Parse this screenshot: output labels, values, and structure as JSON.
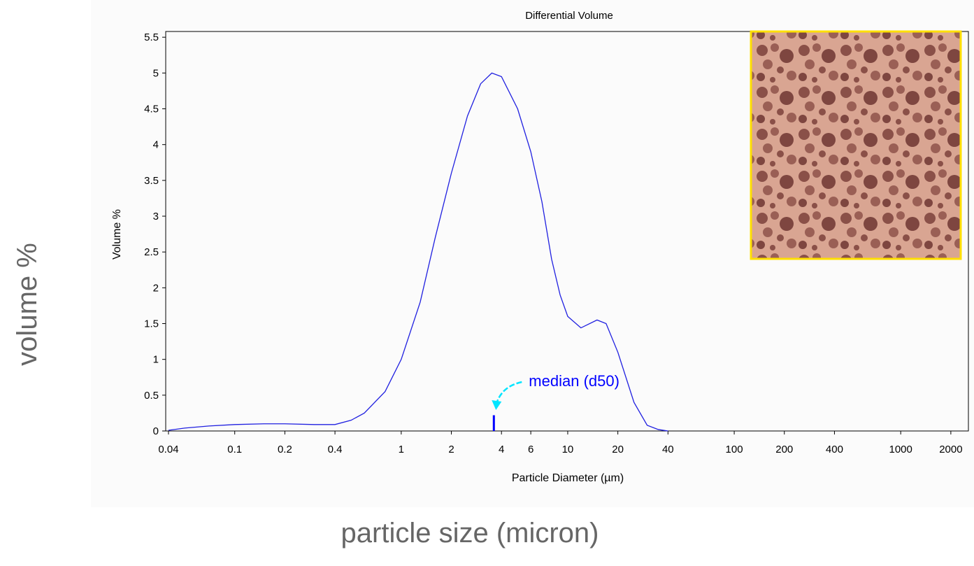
{
  "chart_data": {
    "type": "line",
    "title": "Differential Volume",
    "xlabel": "Particle Diameter (µm)",
    "ylabel": "Volume %",
    "outer_ylabel": "volume %",
    "outer_xlabel": "particle size (micron)",
    "xscale": "log",
    "xlim": [
      0.0385,
      2550
    ],
    "ylim": [
      0,
      5.58
    ],
    "xticks": [
      0.04,
      0.1,
      0.2,
      0.4,
      1,
      2,
      4,
      6,
      10,
      20,
      40,
      100,
      200,
      400,
      1000,
      2000
    ],
    "yticks": [
      0,
      0.5,
      1,
      1.5,
      2,
      2.5,
      3,
      3.5,
      4,
      4.5,
      5,
      5.5
    ],
    "x": [
      0.04,
      0.05,
      0.07,
      0.1,
      0.15,
      0.2,
      0.3,
      0.4,
      0.5,
      0.6,
      0.8,
      1,
      1.3,
      1.6,
      2,
      2.5,
      3,
      3.5,
      4,
      5,
      6,
      7,
      8,
      9,
      10,
      12,
      15,
      17,
      20,
      25,
      30,
      35,
      40
    ],
    "series": [
      {
        "color": "#2020e0",
        "values": [
          0.01,
          0.04,
          0.07,
          0.09,
          0.1,
          0.1,
          0.09,
          0.09,
          0.15,
          0.25,
          0.55,
          1.0,
          1.8,
          2.7,
          3.6,
          4.4,
          4.85,
          5.0,
          4.95,
          4.5,
          3.9,
          3.2,
          2.4,
          1.9,
          1.6,
          1.44,
          1.55,
          1.5,
          1.1,
          0.4,
          0.08,
          0.02,
          0
        ]
      }
    ],
    "annotations": [
      {
        "text": "median (d50)",
        "x": 3.6,
        "y": 0.22,
        "color": "#0000ff"
      }
    ]
  }
}
